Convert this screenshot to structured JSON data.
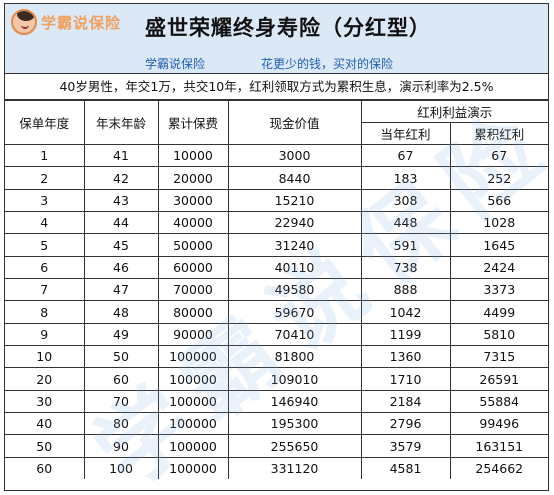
{
  "brand": {
    "logo_text": "学霸说保险",
    "logo_color": "#f0a060"
  },
  "header": {
    "title": "盛世荣耀终身寿险（分红型）",
    "subtitle_left": "学霸说保险",
    "subtitle_right": "花更少的钱，买对的保险"
  },
  "description": "40岁男性，年交1万，共交10年，红利领取方式为累积生息，演示利率为2.5%",
  "table": {
    "headers": {
      "policy_year": "保单年度",
      "age": "年末年龄",
      "cumulative_premium": "累计保费",
      "cash_value": "现金价值",
      "dividend_group": "红利利益演示",
      "annual_dividend": "当年红利",
      "cumulative_dividend": "累积红利"
    },
    "rows": [
      [
        "1",
        "41",
        "10000",
        "3000",
        "67",
        "67"
      ],
      [
        "2",
        "42",
        "20000",
        "8440",
        "183",
        "252"
      ],
      [
        "3",
        "43",
        "30000",
        "15210",
        "308",
        "566"
      ],
      [
        "4",
        "44",
        "40000",
        "22940",
        "448",
        "1028"
      ],
      [
        "5",
        "45",
        "50000",
        "31240",
        "591",
        "1645"
      ],
      [
        "6",
        "46",
        "60000",
        "40110",
        "738",
        "2424"
      ],
      [
        "7",
        "47",
        "70000",
        "49580",
        "888",
        "3373"
      ],
      [
        "8",
        "48",
        "80000",
        "59670",
        "1042",
        "4499"
      ],
      [
        "9",
        "49",
        "90000",
        "70410",
        "1199",
        "5810"
      ],
      [
        "10",
        "50",
        "100000",
        "81800",
        "1360",
        "7315"
      ],
      [
        "20",
        "60",
        "100000",
        "109010",
        "1710",
        "26591"
      ],
      [
        "30",
        "70",
        "100000",
        "146940",
        "2184",
        "55884"
      ],
      [
        "40",
        "80",
        "100000",
        "195300",
        "2796",
        "99496"
      ],
      [
        "50",
        "90",
        "100000",
        "255650",
        "3579",
        "163151"
      ],
      [
        "60",
        "100",
        "100000",
        "331120",
        "4581",
        "254662"
      ]
    ]
  },
  "watermark": "学霸说保险",
  "colors": {
    "header_bg": "#dbe8f6",
    "subtitle": "#1f5fb0"
  }
}
